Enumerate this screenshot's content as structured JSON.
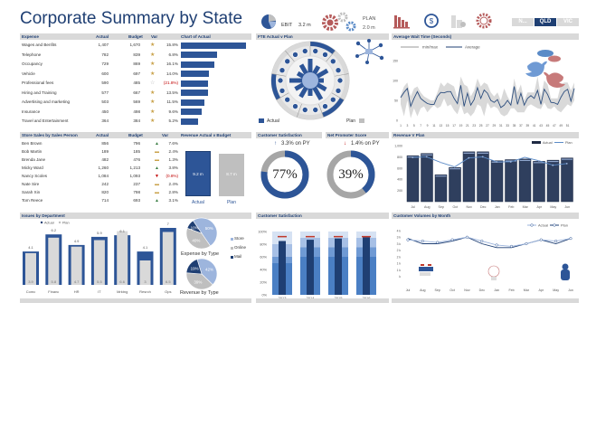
{
  "title": "Corporate Summary by State",
  "kpis": {
    "ebit_label": "EBIT",
    "ebit_value": "3.2 m",
    "plan_label": "PLAN",
    "plan_value": "2.0 m"
  },
  "state_tabs": [
    {
      "label": "N...",
      "selected": false
    },
    {
      "label": "QLD",
      "selected": true
    },
    {
      "label": "VIC",
      "selected": false
    }
  ],
  "icons": [
    "pie-chart-icon",
    "gears-icon",
    "bar-chart-icon",
    "dollar-cycle-icon",
    "buildings-icon",
    "gear-handshake-icon",
    "network-icon",
    "twitter-bird-icon",
    "speech-bubbles-icon",
    "flags-icon",
    "lightbulb-icon",
    "mascot-icon"
  ],
  "colors": {
    "primary": "#2d5597",
    "dark": "#1f3f73",
    "grey": "#bfbfbf",
    "header": "#d9d9d9",
    "negative": "#c00000",
    "star": "#c9a24a",
    "up": "#3a7d44",
    "target": "#c0392b"
  },
  "expenses": {
    "headers": [
      "Expense",
      "Actual",
      "Budget",
      "Var",
      "Chart of Actual"
    ],
    "rows": [
      {
        "name": "Wages and Benfits",
        "actual": "1,407",
        "budget": "1,670",
        "var": "15.8%",
        "value": 1407,
        "star": "filled"
      },
      {
        "name": "Telephone",
        "actual": "782",
        "budget": "839",
        "var": "6.8%",
        "value": 782,
        "star": "filled"
      },
      {
        "name": "Occupancy",
        "actual": "729",
        "budget": "869",
        "var": "16.1%",
        "value": 729,
        "star": "filled"
      },
      {
        "name": "Vehicle",
        "actual": "600",
        "budget": "697",
        "var": "14.0%",
        "value": 600,
        "star": "filled"
      },
      {
        "name": "Professional fees",
        "actual": "590",
        "budget": "485",
        "var": "(21.8%)",
        "value": 590,
        "star": "empty"
      },
      {
        "name": "Hiring and Training",
        "actual": "577",
        "budget": "667",
        "var": "13.5%",
        "value": 577,
        "star": "filled"
      },
      {
        "name": "Advertising and marketing",
        "actual": "503",
        "budget": "569",
        "var": "11.5%",
        "value": 503,
        "star": "filled"
      },
      {
        "name": "Insurance",
        "actual": "450",
        "budget": "498",
        "var": "9.6%",
        "value": 450,
        "star": "filled"
      },
      {
        "name": "Travel and Entertainment",
        "actual": "364",
        "budget": "384",
        "var": "5.2%",
        "value": 364,
        "star": "filled"
      }
    ]
  },
  "sales": {
    "headers": [
      "Store Sales by Sales Person",
      "Actual",
      "Budget",
      "Var",
      "Revenue Actual v Budget"
    ],
    "rows": [
      {
        "name": "Ben Brown",
        "actual": "856",
        "budget": "796",
        "var": "7.6%",
        "trend": "up"
      },
      {
        "name": "Bob Martin",
        "actual": "189",
        "budget": "185",
        "var": "2.4%",
        "trend": "flat"
      },
      {
        "name": "Brenda Jane",
        "actual": "482",
        "budget": "476",
        "var": "1.3%",
        "trend": "flat"
      },
      {
        "name": "Micky Ward",
        "actual": "1,260",
        "budget": "1,213",
        "var": "3.8%",
        "trend": "up"
      },
      {
        "name": "Nancy Scoles",
        "actual": "1,084",
        "budget": "1,093",
        "var": "(0.8%)",
        "trend": "down"
      },
      {
        "name": "Nate Sire",
        "actual": "242",
        "budget": "237",
        "var": "2.4%",
        "trend": "flat"
      },
      {
        "name": "Sarah Xin",
        "actual": "820",
        "budget": "798",
        "var": "2.8%",
        "trend": "flat"
      },
      {
        "name": "Tom Reece",
        "actual": "714",
        "budget": "693",
        "var": "3.1%",
        "trend": "up"
      }
    ],
    "revenue": {
      "actual_label": "Actual",
      "plan_label": "Plan",
      "actual_value": "9.2 m",
      "plan_value": "8.7 m",
      "actual": 9.2,
      "plan": 8.7
    }
  },
  "fte": {
    "title": "FTE Actual v Plan",
    "legend_actual": "Actual",
    "legend_plan": "Plan"
  },
  "customer_satisfaction": {
    "title": "Customer Satisfaction",
    "change": "3.3% on PY",
    "direction": "up",
    "value": "77%",
    "percent": 77
  },
  "nps": {
    "title": "Net Promoter Score",
    "change": "1.4% on PY",
    "direction": "down",
    "value": "39%",
    "percent": 39
  },
  "chart_data": [
    {
      "id": "wait",
      "type": "area",
      "title": "Average Wait Time (Seconds)",
      "legend": [
        "min/max",
        "Average"
      ],
      "ylim": [
        0,
        150
      ],
      "yticks": [
        "150",
        "100",
        "50",
        "0"
      ],
      "xticks": [
        "1",
        "3",
        "5",
        "7",
        "9",
        "11",
        "13",
        "15",
        "17",
        "19",
        "21",
        "23",
        "25",
        "27",
        "29",
        "31",
        "33",
        "35",
        "37",
        "39",
        "41",
        "43",
        "45",
        "47",
        "49",
        "51"
      ],
      "average": [
        57,
        70,
        80,
        35,
        55,
        72,
        55,
        48,
        42,
        40,
        40,
        60,
        70,
        69,
        72,
        72,
        55,
        42,
        88,
        35,
        68,
        38,
        52,
        82,
        55,
        76,
        68,
        50,
        45,
        52,
        32,
        38,
        50,
        38,
        85,
        40,
        68,
        38,
        55,
        62,
        55,
        75,
        40,
        78,
        65,
        45,
        44,
        40,
        58,
        72,
        78,
        48,
        80
      ],
      "min": [
        40,
        10,
        50,
        5,
        30,
        10,
        30,
        35,
        20,
        30,
        38,
        30,
        35,
        55,
        35,
        40,
        25,
        15,
        40,
        15,
        20,
        10,
        20,
        40,
        35,
        10,
        45,
        30,
        35,
        30,
        15,
        10,
        15,
        30,
        30,
        20,
        20,
        20,
        35,
        40,
        35,
        30,
        28,
        45,
        30,
        28,
        35,
        25,
        20,
        30,
        40,
        35,
        50
      ],
      "max": [
        62,
        85,
        95,
        60,
        80,
        85,
        70,
        60,
        55,
        50,
        50,
        70,
        95,
        85,
        95,
        90,
        85,
        55,
        110,
        90,
        85,
        60,
        75,
        105,
        85,
        95,
        90,
        70,
        60,
        70,
        50,
        80,
        60,
        45,
        105,
        70,
        90,
        50,
        70,
        70,
        70,
        110,
        60,
        100,
        90,
        55,
        55,
        55,
        90,
        95,
        95,
        75,
        95
      ]
    },
    {
      "id": "revenue",
      "type": "bar",
      "title": "Revenue V Plan",
      "legend": [
        "Actual",
        "Plan"
      ],
      "ylim": [
        0,
        1000
      ],
      "yticks": [
        "1,000",
        "800",
        "600",
        "400",
        "200"
      ],
      "categories": [
        "Jul",
        "Aug",
        "Sep",
        "Oct",
        "Nov",
        "Dec",
        "Jan",
        "Feb",
        "Mar",
        "Apr",
        "May",
        "Jun"
      ],
      "series": [
        {
          "name": "Actual",
          "values": [
            820,
            860,
            480,
            610,
            890,
            890,
            730,
            750,
            760,
            720,
            740,
            780
          ]
        },
        {
          "name": "Plan",
          "values": [
            790,
            800,
            700,
            620,
            780,
            800,
            710,
            710,
            790,
            730,
            650,
            680
          ]
        }
      ]
    },
    {
      "id": "issues",
      "type": "bar",
      "title": "Issues by Department",
      "legend": [
        "Actual",
        "Plan"
      ],
      "categories": [
        "Comc",
        "Financ",
        "HR",
        "IT",
        "Mrktng",
        "Resrch",
        "Ops"
      ],
      "series": [
        {
          "name": "Actual",
          "values": [
            4.1,
            6.2,
            4.9,
            5.9,
            6.1,
            4.1,
            7
          ],
          "labels": [
            "4.1",
            "6.2",
            "4.9",
            "5.9",
            "6.1",
            "4.1",
            "7"
          ]
        },
        {
          "name": "Plan",
          "values": [
            3.9,
            5.8,
            4.7,
            5.5,
            6.6,
            3,
            6.5
          ],
          "labels": [
            "3.9",
            "5.8",
            "4.7",
            "5.5",
            "6.6",
            "3",
            "6.5"
          ]
        }
      ]
    },
    {
      "id": "expense_type",
      "type": "pie",
      "title": "Expense by Type",
      "categories": [
        "Store",
        "Online",
        "Mail"
      ],
      "values": [
        50,
        40,
        10
      ],
      "labels": [
        "50%",
        "40%",
        "10%"
      ]
    },
    {
      "id": "revenue_type",
      "type": "pie",
      "title": "Revenue  by Type",
      "categories": [
        "Store",
        "Online",
        "Mail"
      ],
      "values": [
        42,
        39,
        19
      ],
      "labels": [
        "42%",
        "39%",
        "19%"
      ]
    },
    {
      "id": "satisfaction",
      "type": "bar",
      "title": "Customer Satisfaction",
      "ylim": [
        0,
        100
      ],
      "yticks": [
        "100%",
        "80%",
        "60%",
        "40%",
        "20%",
        "0%"
      ],
      "categories": [
        "2013",
        "2014",
        "2015",
        "2016"
      ],
      "bands": [
        [
          50,
          60,
          80,
          100
        ],
        [
          60,
          75,
          90,
          100
        ],
        [
          60,
          75,
          90,
          100
        ],
        [
          60,
          75,
          90,
          100
        ]
      ],
      "actual": [
        85,
        87,
        89,
        91
      ],
      "target": [
        92,
        92,
        92,
        92
      ]
    },
    {
      "id": "volumes",
      "type": "line",
      "title": "Customer Volumes by Month",
      "legend": [
        "Actual",
        "Plan"
      ],
      "ylim": [
        0,
        4
      ],
      "yticks": [
        "4 k",
        "3 k",
        "3 k",
        "2 k",
        "2 k",
        "1 k",
        "1 k",
        "k"
      ],
      "categories": [
        "Jul",
        "Aug",
        "Sep",
        "Oct",
        "Nov",
        "Dec",
        "Jan",
        "Feb",
        "Mar",
        "Apr",
        "May",
        "Jun"
      ],
      "series": [
        {
          "name": "Actual",
          "values": [
            3.3,
            3.2,
            3.1,
            3.3,
            3.5,
            3.2,
            2.9,
            2.8,
            3.0,
            3.3,
            3.2,
            3.4
          ]
        },
        {
          "name": "Plan",
          "values": [
            3.4,
            3.0,
            3.0,
            3.2,
            3.5,
            3.0,
            2.7,
            2.7,
            3.0,
            3.3,
            3.0,
            3.4
          ]
        }
      ]
    }
  ]
}
